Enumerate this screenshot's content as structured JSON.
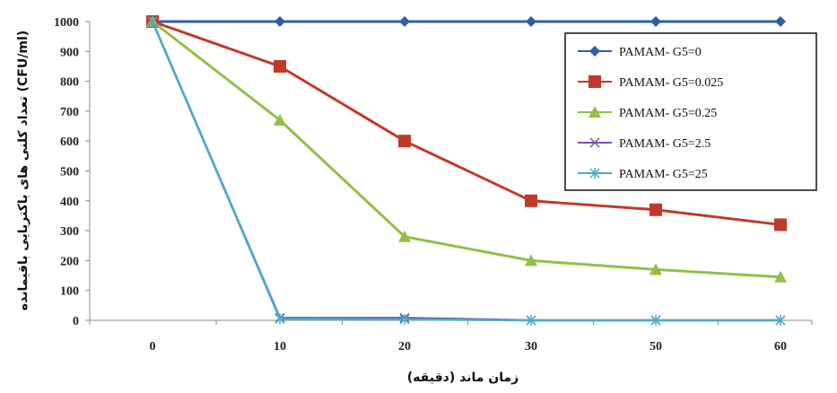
{
  "chart_data": {
    "type": "line",
    "x": [
      "0",
      "10",
      "20",
      "30",
      "50",
      "60"
    ],
    "ylim": [
      0,
      1000
    ],
    "yticks": [
      0,
      100,
      200,
      300,
      400,
      500,
      600,
      700,
      800,
      900,
      1000
    ],
    "xlabel": "زمان ماند (دقیقه)",
    "ylabel": "تعداد کلنی های باکتریایی باقیمانده (CFU/ml)",
    "grid": false,
    "legend_position": "top-right",
    "series": [
      {
        "name": "PAMAM- G5=0",
        "color": "#2e5fa3",
        "marker": "diamond",
        "values": [
          1000,
          1000,
          1000,
          1000,
          1000,
          1000
        ]
      },
      {
        "name": "PAMAM- G5=0.025",
        "color": "#c0392b",
        "marker": "square",
        "values": [
          1000,
          850,
          600,
          400,
          370,
          320
        ]
      },
      {
        "name": "PAMAM- G5=0.25",
        "color": "#93bf45",
        "marker": "triangle",
        "values": [
          1000,
          670,
          280,
          200,
          170,
          145
        ]
      },
      {
        "name": "PAMAM- G5=2.5",
        "color": "#7a4fa3",
        "marker": "x",
        "values": [
          1000,
          8,
          8,
          0,
          0,
          0
        ]
      },
      {
        "name": "PAMAM- G5=25",
        "color": "#4bacc6",
        "marker": "star",
        "values": [
          1000,
          5,
          3,
          0,
          0,
          0
        ]
      }
    ]
  }
}
